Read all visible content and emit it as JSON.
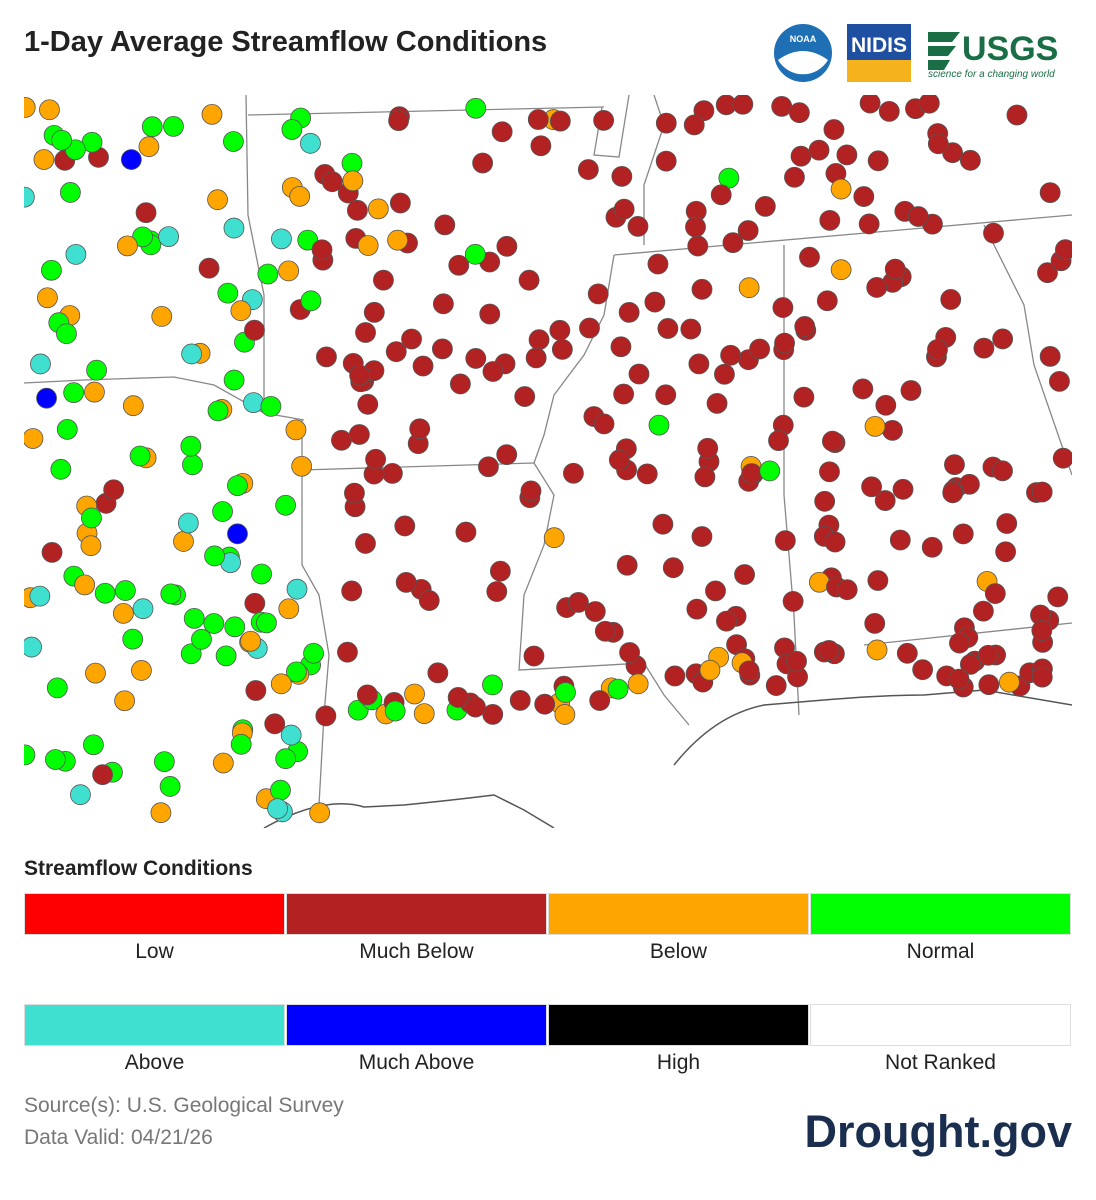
{
  "header": {
    "title": "1-Day Average Streamflow Conditions",
    "logos": {
      "noaa": "NOAA",
      "nidis": "NIDIS",
      "usgs": "USGS",
      "usgs_tagline": "science for a changing world"
    }
  },
  "legend": {
    "title": "Streamflow Conditions",
    "items": [
      {
        "label": "Low",
        "color": "#ff0000"
      },
      {
        "label": "Much Below",
        "color": "#b22222"
      },
      {
        "label": "Below",
        "color": "#ffa500"
      },
      {
        "label": "Normal",
        "color": "#00ff00"
      },
      {
        "label": "Above",
        "color": "#40e0d0"
      },
      {
        "label": "Much Above",
        "color": "#0000ff"
      },
      {
        "label": "High",
        "color": "#000000"
      },
      {
        "label": "Not Ranked",
        "color": "#ffffff"
      }
    ]
  },
  "footer": {
    "source": "Source(s): U.S. Geological Survey",
    "valid": "Data Valid: 04/21/26",
    "brand": "Drought.gov"
  }
}
